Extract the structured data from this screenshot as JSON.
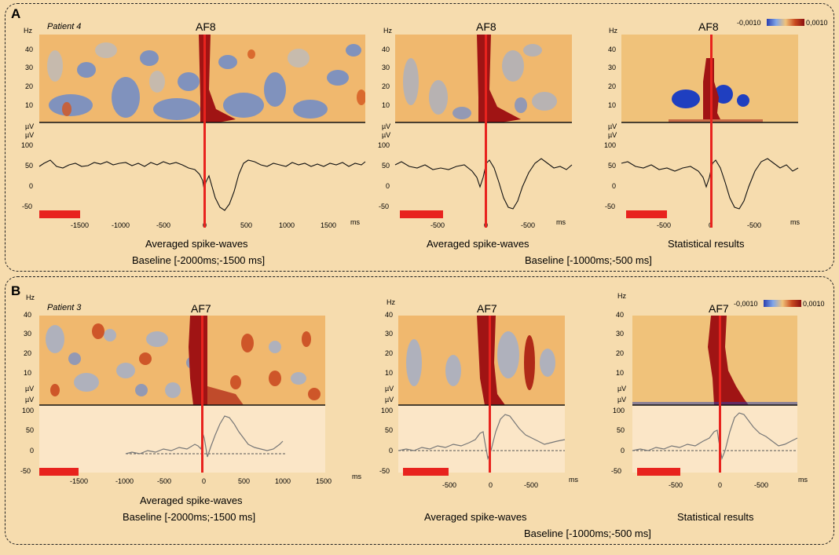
{
  "sections": [
    {
      "letter": "A",
      "patient": "Patient 4",
      "captions": {
        "averaged": "Averaged spike-waves",
        "statistical": "Statistical results",
        "baseline_left": "Baseline [-2000ms;-1500 ms]",
        "baseline_right": "Baseline [-1000ms;-500 ms]"
      },
      "panels": [
        {
          "electrode": "AF8",
          "freq_ticks": [
            "40",
            "30",
            "20",
            "10"
          ],
          "uv_ticks": [
            "100",
            "50",
            "0",
            "-50"
          ],
          "time_ticks": [
            "-1500",
            "-1000",
            "-500",
            "0",
            "500",
            "1000",
            "1500"
          ],
          "time_unit": "ms"
        },
        {
          "electrode": "AF8",
          "freq_ticks": [
            "40",
            "30",
            "20",
            "10"
          ],
          "uv_ticks": [
            "100",
            "50",
            "0",
            "-50"
          ],
          "time_ticks": [
            "-500",
            "0",
            "-500"
          ],
          "time_unit": "ms"
        },
        {
          "electrode": "AF8",
          "freq_ticks": [
            "40",
            "30",
            "20",
            "10"
          ],
          "uv_ticks": [
            "100",
            "50",
            "0",
            "-50"
          ],
          "time_ticks": [
            "-500",
            "0",
            "-500"
          ],
          "time_unit": "ms"
        }
      ],
      "colorbar": {
        "min": "-0,0010",
        "max": "0,0010"
      }
    },
    {
      "letter": "B",
      "patient": "Patient 3",
      "captions": {
        "averaged": "Averaged spike-waves",
        "statistical": "Statistical results",
        "baseline_left": "Baseline [-2000ms;-1500 ms]",
        "baseline_right": "Baseline [-1000ms;-500 ms]"
      },
      "panels": [
        {
          "electrode": "AF7",
          "freq_ticks": [
            "40",
            "30",
            "20",
            "10"
          ],
          "uv_ticks": [
            "100",
            "50",
            "0",
            "-50"
          ],
          "time_ticks": [
            "-1500",
            "-1000",
            "-500",
            "0",
            "500",
            "1000",
            "1500"
          ],
          "time_unit": "ms"
        },
        {
          "electrode": "AF7",
          "freq_ticks": [
            "40",
            "30",
            "20",
            "10"
          ],
          "uv_ticks": [
            "100",
            "50",
            "0",
            "-50"
          ],
          "time_ticks": [
            "-500",
            "0",
            "-500"
          ],
          "time_unit": "ms"
        },
        {
          "electrode": "AF7",
          "freq_ticks": [
            "40",
            "30",
            "20",
            "10"
          ],
          "uv_ticks": [
            "100",
            "50",
            "0",
            "-50"
          ],
          "time_ticks": [
            "-500",
            "0",
            "-500"
          ],
          "time_unit": "ms"
        }
      ],
      "colorbar": {
        "min": "-0,0010",
        "max": "0,0010"
      }
    }
  ],
  "units": {
    "hz": "Hz",
    "uv": "µV"
  },
  "colors": {
    "background": "#f6dcae",
    "spike_line": "#e8231e",
    "baseline_bar": "#e8231e",
    "positive": "#a01414",
    "negative": "#3c64c8",
    "neutral": "#f0c27a",
    "trace_bg_b": "#fbe6c7"
  }
}
